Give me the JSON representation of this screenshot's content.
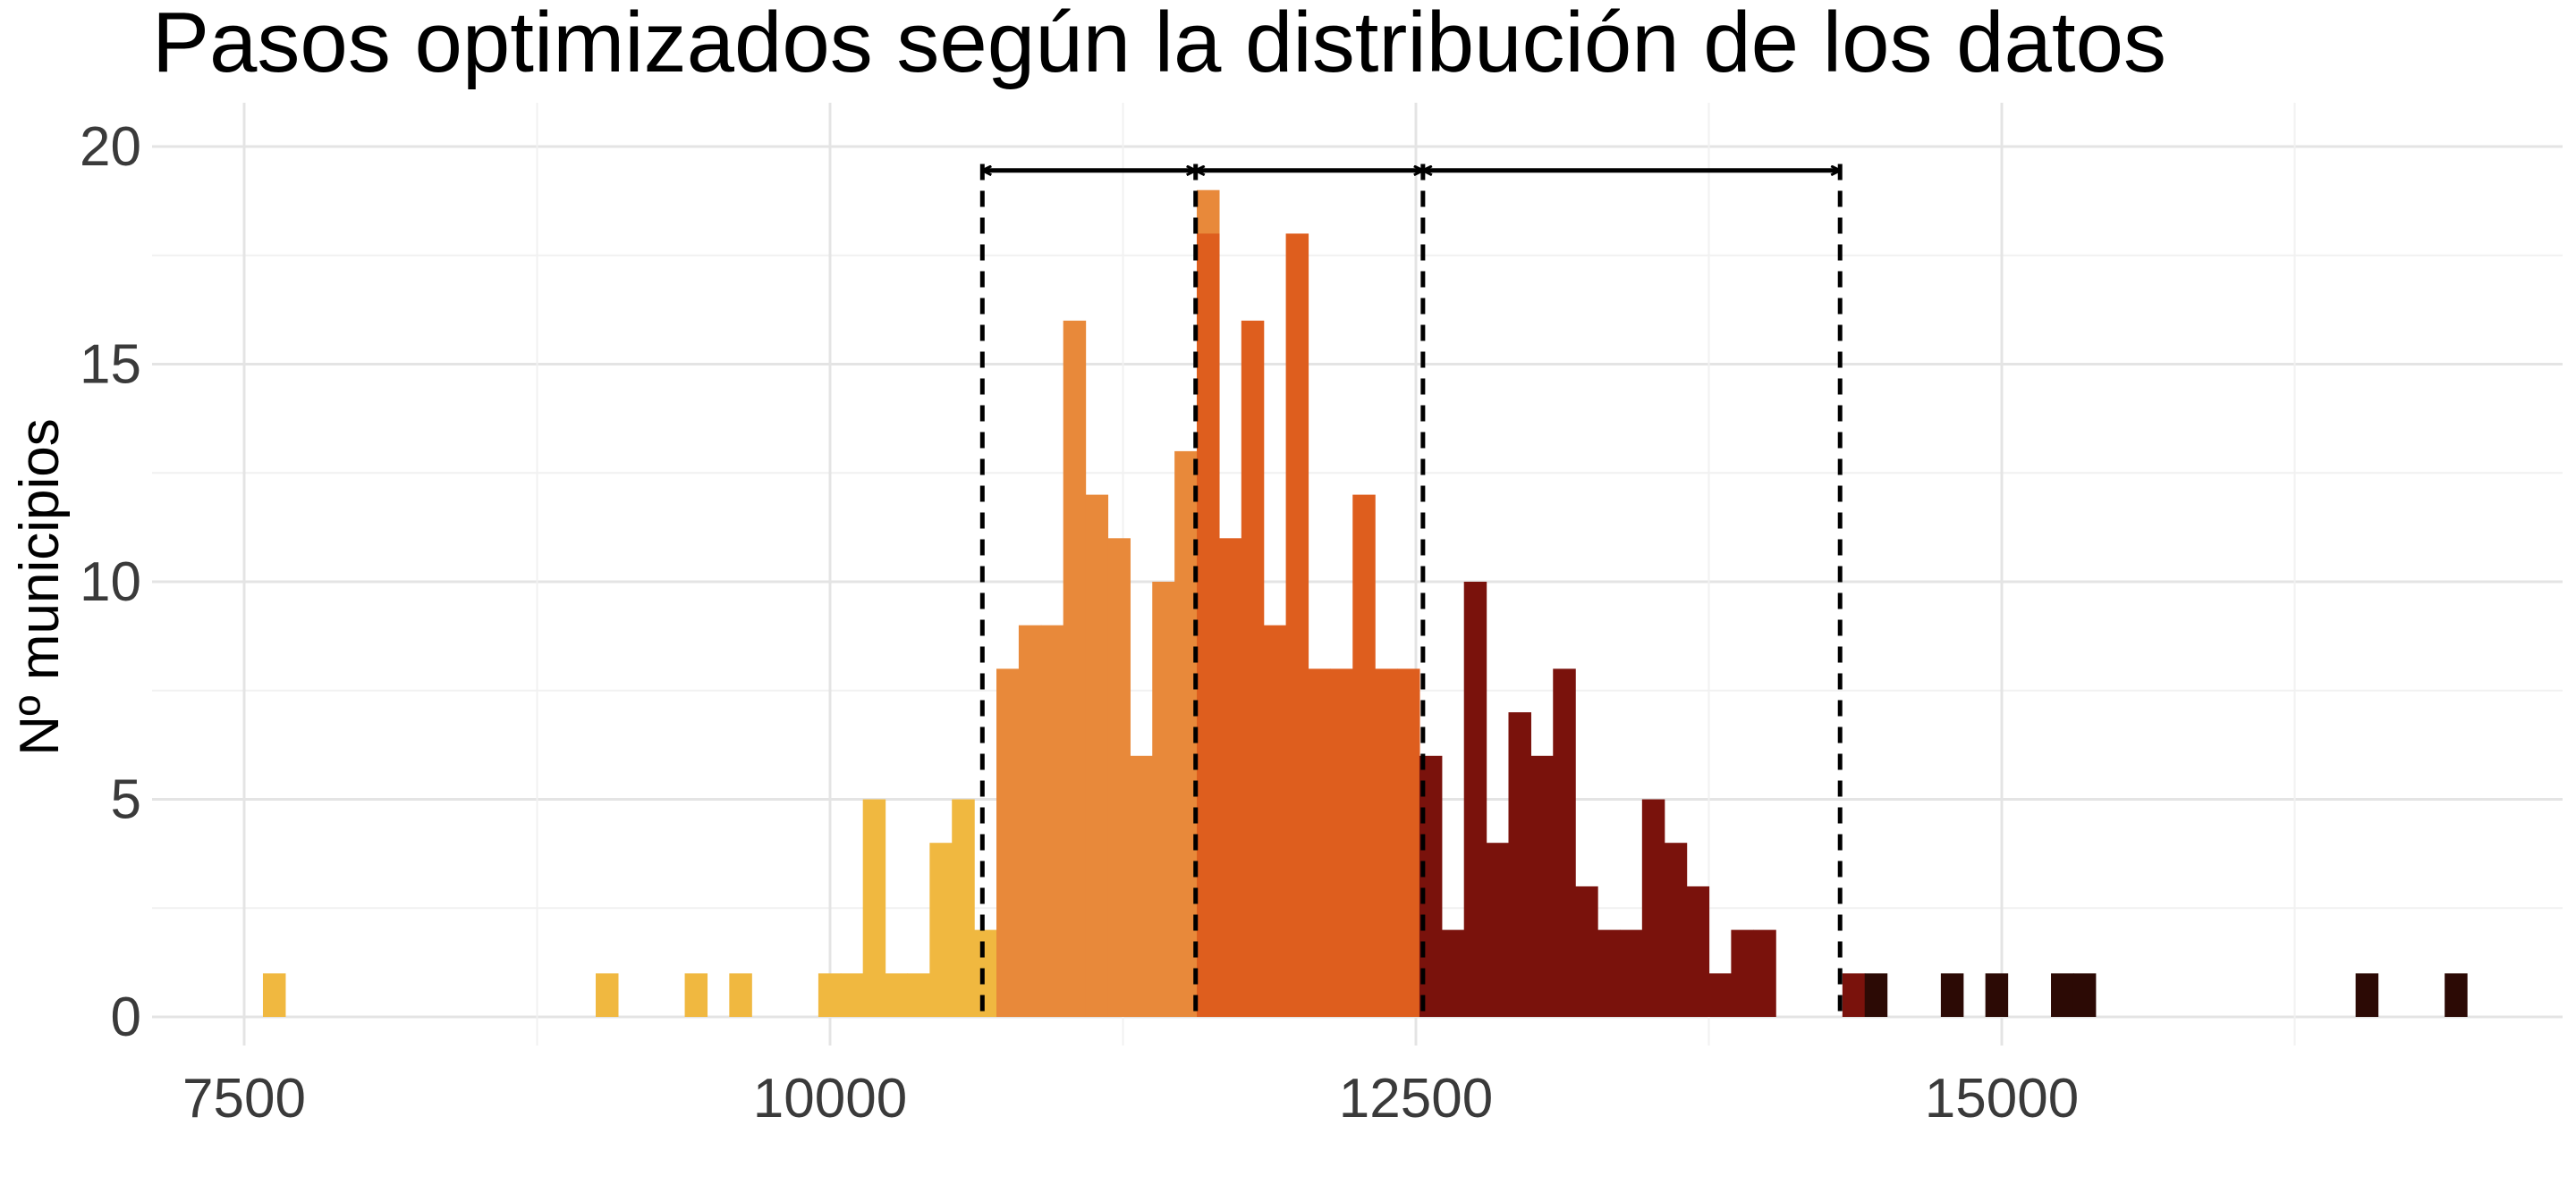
{
  "chart_data": {
    "type": "bar",
    "title": "Pasos optimizados según la distribución de los datos",
    "xlabel": "",
    "ylabel": "Nº municipios",
    "xlim": [
      7000,
      17500
    ],
    "ylim": [
      0,
      20
    ],
    "xticks": [
      7500,
      10000,
      12500,
      15000
    ],
    "xtick_labels": [
      "7500",
      "10000",
      "12500",
      "15000"
    ],
    "yticks": [
      0,
      5,
      10,
      15,
      20
    ],
    "ytick_labels": [
      "0",
      "5",
      "10",
      "15",
      "20"
    ],
    "grid": true,
    "bin_width": 95,
    "cut_points": [
      10650,
      11560,
      12530,
      14310
    ],
    "colors": {
      "group_1": "#f0b840",
      "group_2": "#e8893a",
      "group_3": "#de5e1e",
      "group_4": "#7a120c",
      "group_5": "#2c0a05",
      "cut_line": "#000000"
    },
    "series": [
      {
        "color_key": "group_1",
        "bins": [
          [
            7580,
            1
          ],
          [
            9000,
            1
          ],
          [
            9380,
            1
          ],
          [
            9570,
            1
          ],
          [
            9950,
            1
          ],
          [
            10045,
            1
          ],
          [
            10140,
            5
          ],
          [
            10235,
            1
          ],
          [
            10330,
            1
          ],
          [
            10425,
            4
          ],
          [
            10520,
            5
          ],
          [
            10615,
            2
          ]
        ]
      },
      {
        "color_key": "group_2",
        "bins": [
          [
            10710,
            8
          ],
          [
            10805,
            9
          ],
          [
            10900,
            9
          ],
          [
            10995,
            16
          ],
          [
            11090,
            12
          ],
          [
            11185,
            11
          ],
          [
            11280,
            6
          ],
          [
            11375,
            10
          ],
          [
            11470,
            13
          ],
          [
            11565,
            19
          ]
        ]
      },
      {
        "color_key": "group_3",
        "bins": [
          [
            11565,
            18
          ],
          [
            11660,
            11
          ],
          [
            11755,
            16
          ],
          [
            11850,
            9
          ],
          [
            11945,
            18
          ],
          [
            12040,
            8
          ],
          [
            12135,
            8
          ],
          [
            12230,
            12
          ],
          [
            12325,
            8
          ],
          [
            12420,
            8
          ]
        ]
      },
      {
        "color_key": "group_4",
        "bins": [
          [
            12515,
            6
          ],
          [
            12610,
            2
          ],
          [
            12705,
            10
          ],
          [
            12800,
            4
          ],
          [
            12895,
            7
          ],
          [
            12990,
            6
          ],
          [
            13085,
            8
          ],
          [
            13180,
            3
          ],
          [
            13275,
            2
          ],
          [
            13370,
            2
          ],
          [
            13465,
            5
          ],
          [
            13560,
            4
          ],
          [
            13655,
            3
          ],
          [
            13750,
            1
          ],
          [
            13845,
            2
          ],
          [
            13940,
            2
          ],
          [
            14320,
            1
          ]
        ]
      },
      {
        "color_key": "group_5",
        "bins": [
          [
            14415,
            1
          ],
          [
            14740,
            1
          ],
          [
            14930,
            1
          ],
          [
            15210,
            1
          ],
          [
            15305,
            1
          ],
          [
            16510,
            1
          ],
          [
            16890,
            1
          ]
        ]
      }
    ]
  }
}
